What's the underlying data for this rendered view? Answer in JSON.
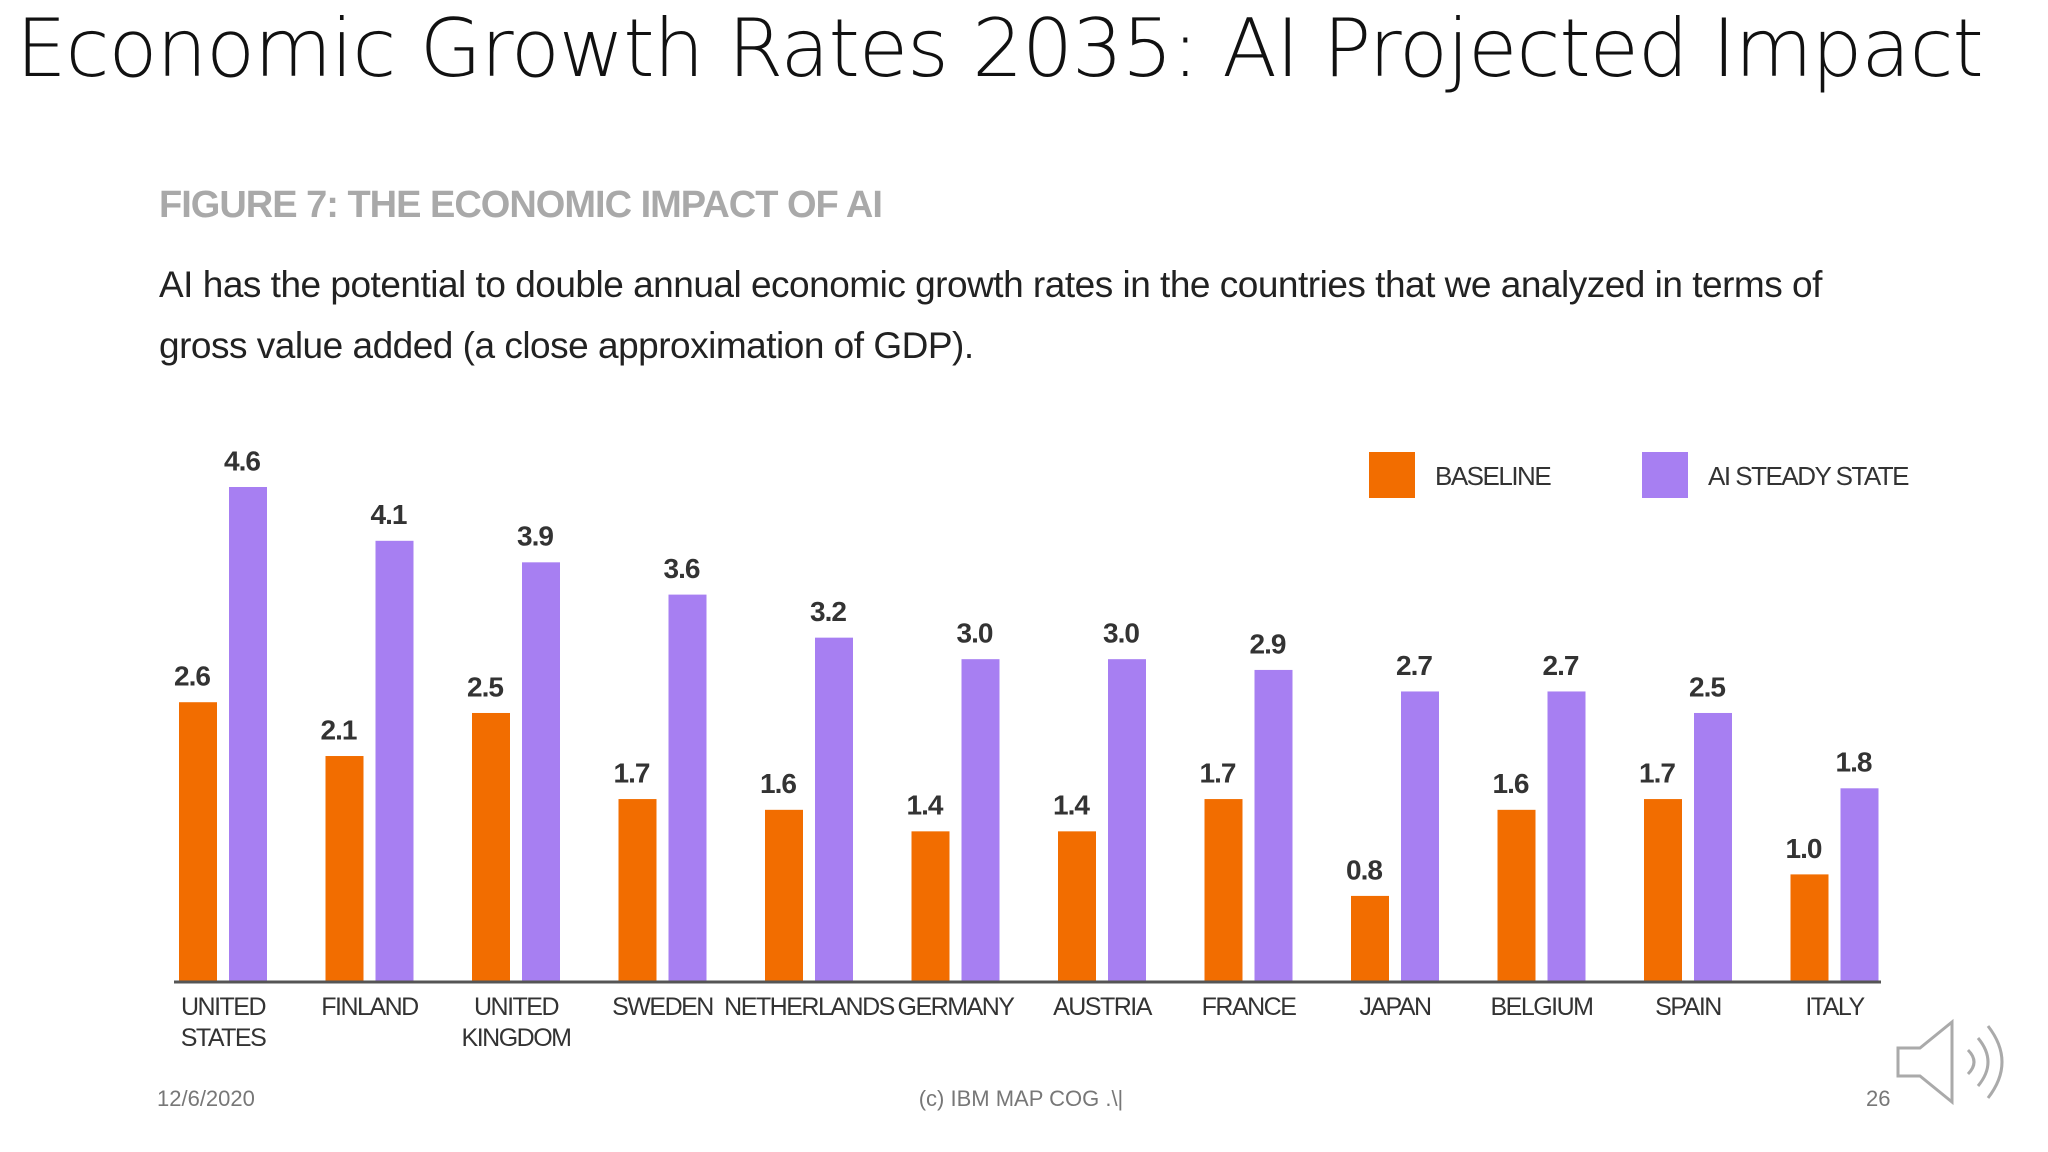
{
  "slide": {
    "title": "Economic Growth Rates 2035: AI Projected Impact",
    "date": "12/6/2020",
    "footer": "(c) IBM MAP COG .\\|",
    "page": "26"
  },
  "chart_data": {
    "type": "bar",
    "title": "FIGURE 7: THE ECONOMIC IMPACT OF AI",
    "subtitle": "AI has the potential to double annual economic growth rates in the countries that we analyzed in terms of gross value added (a close approximation of GDP).",
    "categories": [
      "UNITED STATES",
      "FINLAND",
      "UNITED KINGDOM",
      "SWEDEN",
      "NETHERLANDS",
      "GERMANY",
      "AUSTRIA",
      "FRANCE",
      "JAPAN",
      "BELGIUM",
      "SPAIN",
      "ITALY"
    ],
    "series": [
      {
        "name": "BASELINE",
        "color": "#f26d00",
        "values": [
          2.6,
          2.1,
          2.5,
          1.7,
          1.6,
          1.4,
          1.4,
          1.7,
          0.8,
          1.6,
          1.7,
          1.0
        ],
        "value_labels": [
          "2.6",
          "2.1",
          "2.5",
          "1.7",
          "1.6",
          "1.4",
          "1.4",
          "1.7",
          "0.8",
          "1.6",
          "1.7",
          "1.0"
        ]
      },
      {
        "name": "AI STEADY STATE",
        "color": "#a77ff2",
        "values": [
          4.6,
          4.1,
          3.9,
          3.6,
          3.2,
          3.0,
          3.0,
          2.9,
          2.7,
          2.7,
          2.5,
          1.8
        ],
        "value_labels": [
          "4.6",
          "4.1",
          "3.9",
          "3.6",
          "3.2",
          "3.0",
          "3.0",
          "2.9",
          "2.7",
          "2.7",
          "2.5",
          "1.8"
        ]
      }
    ],
    "legend": "top-right"
  }
}
